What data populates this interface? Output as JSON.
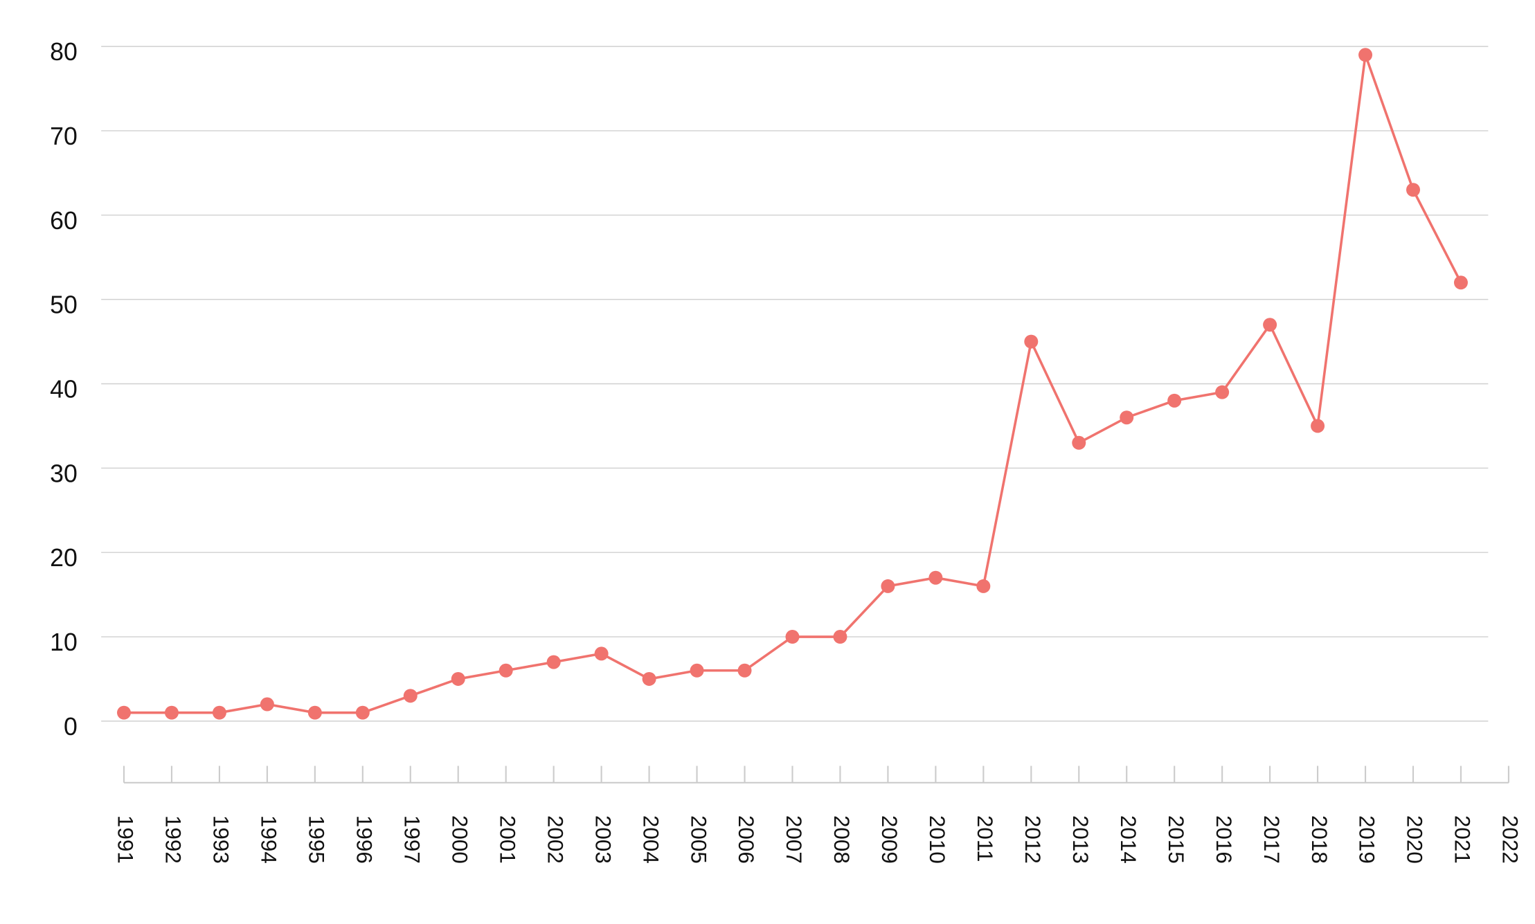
{
  "chart_data": {
    "type": "line",
    "categories": [
      "1991",
      "1992",
      "1993",
      "1994",
      "1995",
      "1996",
      "1997",
      "2000",
      "2001",
      "2002",
      "2003",
      "2004",
      "2005",
      "2006",
      "2007",
      "2008",
      "2009",
      "2010",
      "2011",
      "2012",
      "2013",
      "2014",
      "2015",
      "2016",
      "2017",
      "2018",
      "2019",
      "2020",
      "2021",
      "2022"
    ],
    "series": [
      {
        "color": "#f0736e",
        "values": [
          1,
          1,
          1,
          2,
          1,
          1,
          3,
          5,
          6,
          7,
          8,
          5,
          6,
          6,
          10,
          10,
          16,
          17,
          16,
          45,
          33,
          36,
          38,
          39,
          47,
          35,
          79,
          63,
          52,
          null
        ]
      }
    ],
    "ylim": [
      -7.3,
      80
    ],
    "yticks": [
      0,
      10,
      20,
      30,
      40,
      50,
      60,
      70,
      80
    ],
    "grid": true
  }
}
